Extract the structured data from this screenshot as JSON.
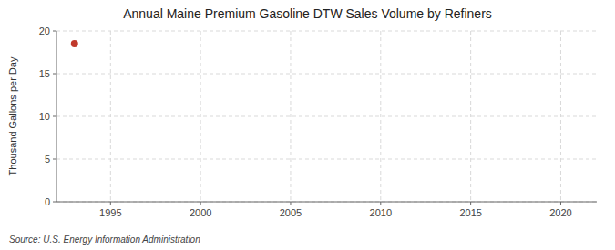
{
  "chart_data": {
    "type": "scatter",
    "title": "Annual Maine Premium Gasoline DTW Sales Volume by Refiners",
    "ylabel": "Thousand Gallons per Day",
    "source": "Source: U.S. Energy Information Administration",
    "x": [
      1993
    ],
    "values": [
      18.5
    ],
    "color": "#c0392b",
    "xlim": [
      1992,
      2022
    ],
    "ylim": [
      0,
      20
    ],
    "xticks": [
      1995,
      2000,
      2005,
      2010,
      2015,
      2020
    ],
    "yticks": [
      0,
      5,
      10,
      15,
      20
    ],
    "grid": true
  }
}
